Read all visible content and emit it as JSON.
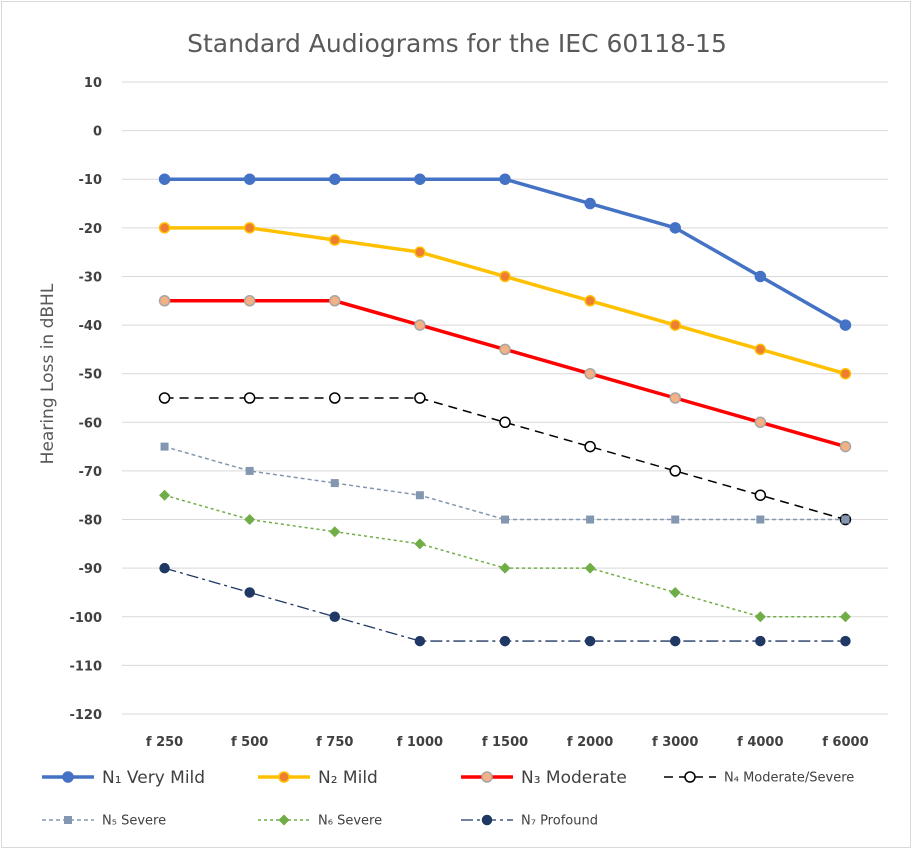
{
  "chart_data": {
    "type": "line",
    "title": "Standard Audiograms for the IEC 60118-15",
    "ylabel": "Hearing Loss in dBHL",
    "xlabel": "",
    "categories": [
      "f 250",
      "f 500",
      "f 750",
      "f 1000",
      "f 1500",
      "f 2000",
      "f 3000",
      "f 4000",
      "f 6000"
    ],
    "ylim": [
      -120,
      10
    ],
    "yticks": [
      10,
      0,
      -10,
      -20,
      -30,
      -40,
      -50,
      -60,
      -70,
      -80,
      -90,
      -100,
      -110,
      -120
    ],
    "grid": true,
    "legend_position": "bottom",
    "series": [
      {
        "name": "N₁ Very Mild",
        "color": "#4472C4",
        "values": [
          -10,
          -10,
          -10,
          -10,
          -10,
          -15,
          -20,
          -30,
          -40
        ]
      },
      {
        "name": "N₂ Mild",
        "color": "#FFC000",
        "values": [
          -20,
          -20,
          -22.5,
          -25,
          -30,
          -35,
          -40,
          -45,
          -50
        ]
      },
      {
        "name": "N₃ Moderate",
        "color": "#FF0000",
        "values": [
          -35,
          -35,
          -35,
          -40,
          -45,
          -50,
          -55,
          -60,
          -65
        ]
      },
      {
        "name": "N₄ Moderate/Severe",
        "color": "#000000",
        "values": [
          -55,
          -55,
          -55,
          -55,
          -60,
          -65,
          -70,
          -75,
          -80
        ]
      },
      {
        "name": "N₅ Severe",
        "color": "#8497B0",
        "values": [
          -65,
          -70,
          -72.5,
          -75,
          -80,
          -80,
          -80,
          -80,
          -80
        ]
      },
      {
        "name": "N₆ Severe",
        "color": "#70AD47",
        "values": [
          -75,
          -80,
          -82.5,
          -85,
          -90,
          -90,
          -95,
          -100,
          -100
        ]
      },
      {
        "name": "N₇ Profound",
        "color": "#203864",
        "values": [
          -90,
          -95,
          -100,
          -105,
          -105,
          -105,
          -105,
          -105,
          -105
        ]
      }
    ]
  }
}
